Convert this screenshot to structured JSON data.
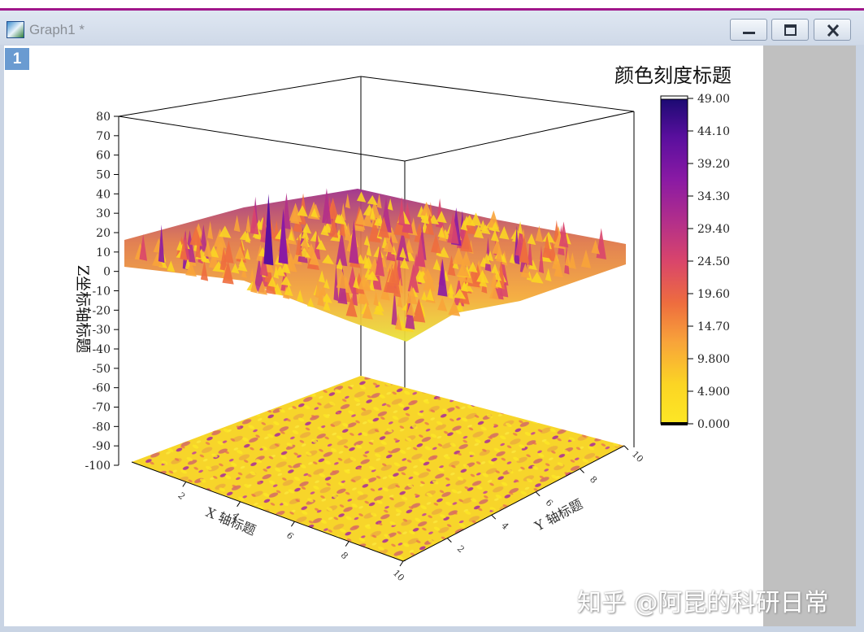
{
  "window": {
    "title": "Graph1 *",
    "layer_label": "1"
  },
  "watermark": "知乎 @阿昆的科研日常",
  "chart_data": {
    "type": "surface3d",
    "title": "",
    "xlabel": "X 轴标题",
    "ylabel": "Y 轴标题",
    "zlabel": "Z坐标轴标题",
    "colorbar_title": "颜色刻度标题",
    "z_ticks": [
      "80",
      "70",
      "60",
      "50",
      "40",
      "30",
      "20",
      "10",
      "0",
      "-10",
      "-20",
      "-30",
      "-40",
      "-50",
      "-60",
      "-70",
      "-80",
      "-90",
      "-100"
    ],
    "zlim": [
      -100,
      80
    ],
    "x_ticks": [
      "2",
      "4",
      "6",
      "8",
      "10"
    ],
    "y_ticks": [
      "2",
      "4",
      "6",
      "8",
      "10"
    ],
    "colorbar_ticks": [
      "49.00",
      "44.10",
      "39.20",
      "34.30",
      "29.40",
      "24.50",
      "19.60",
      "14.70",
      "9.800",
      "4.900",
      "0.000"
    ],
    "colorbar_range": [
      0,
      49
    ],
    "colormap": [
      "#fde725",
      "#fbd524",
      "#f8a43a",
      "#ee6d3e",
      "#d9456b",
      "#b32f8a",
      "#8a1aa4",
      "#5a0f9e",
      "#1b0a72"
    ],
    "surface_baseline_z": 10,
    "peak_points": [
      {
        "x": 3.0,
        "y": 2.6,
        "z": 46
      },
      {
        "x": 3.2,
        "y": 3.0,
        "z": 38
      },
      {
        "x": 4.6,
        "y": 4.4,
        "z": 32
      },
      {
        "x": 6.2,
        "y": 5.4,
        "z": 26
      },
      {
        "x": 8.2,
        "y": 7.6,
        "z": 24
      }
    ],
    "grid": false
  }
}
